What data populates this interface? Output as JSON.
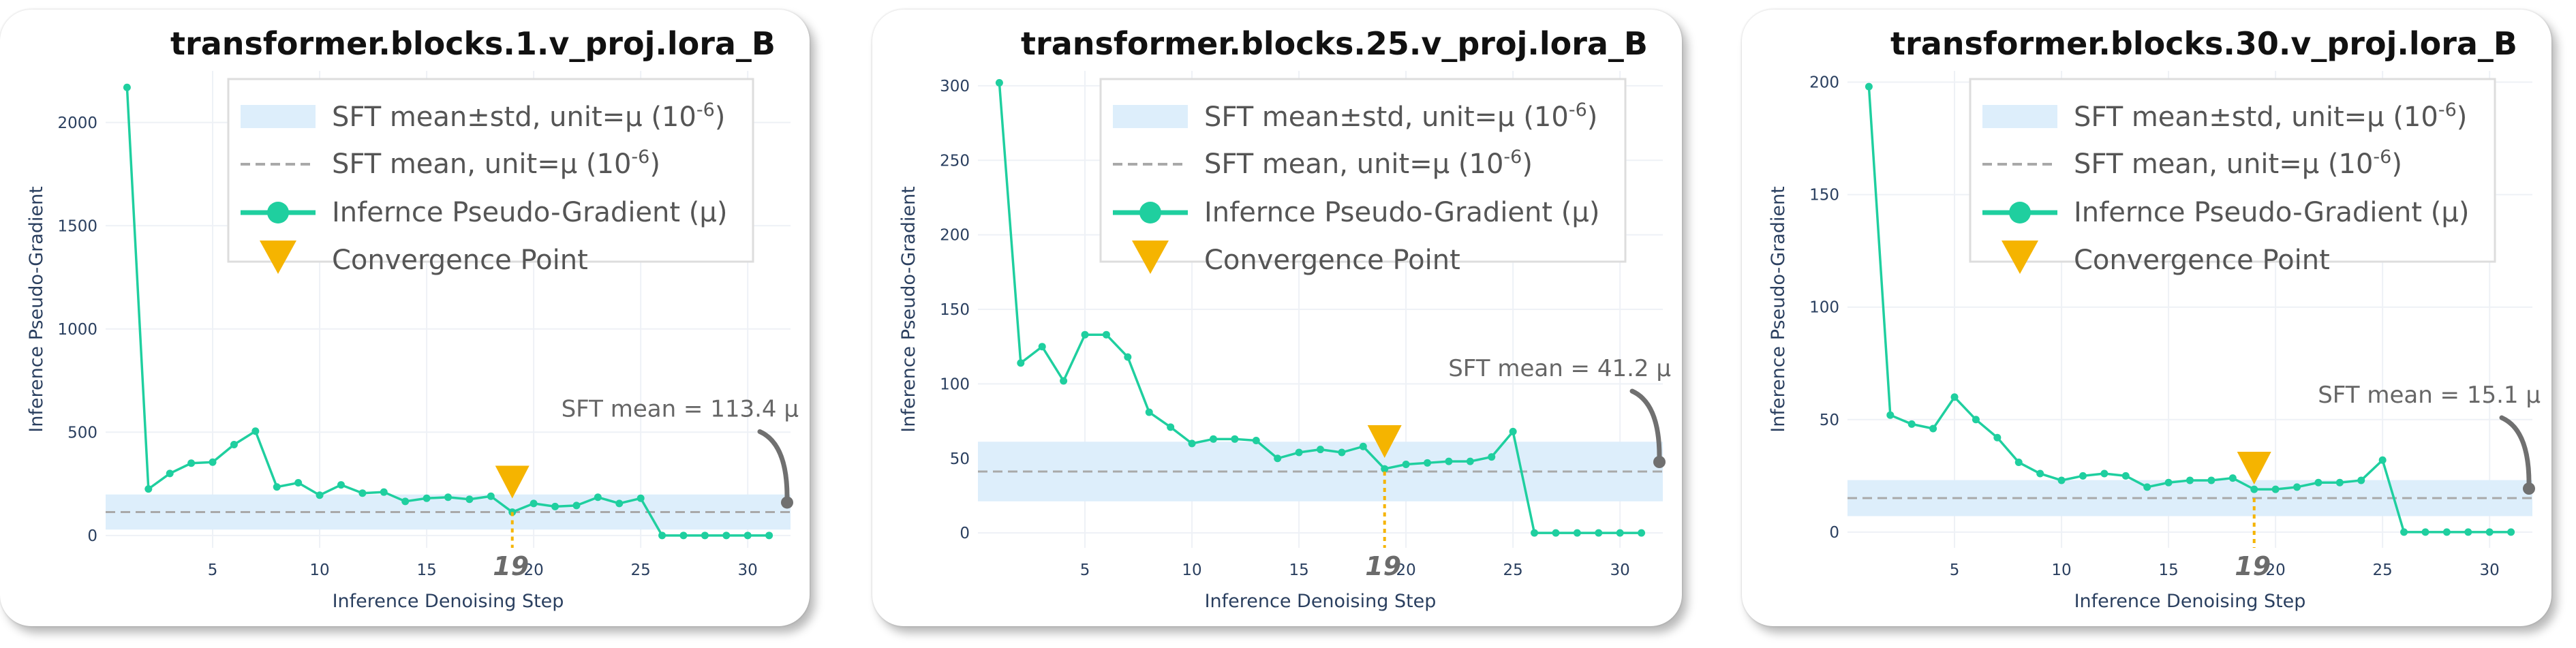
{
  "colors": {
    "band": "#ddeefb",
    "mean_line": "#a9a9a9",
    "series": "#1fcf9f",
    "marker": "#f5b400",
    "annotation": "#707070"
  },
  "legend": {
    "band_label": "SFT mean±std, unit=μ (10",
    "band_sup": "-6",
    "band_close": ")",
    "mean_label": "SFT mean, unit=μ (10",
    "mean_sup": "-6",
    "mean_close": ")",
    "series_label": "Infernce Pseudo-Gradient (μ)",
    "marker_label": "Convergence Point"
  },
  "chart_data": [
    {
      "type": "line",
      "title": "transformer.blocks.1.v_proj.lora_B",
      "xlabel": "Inference Denoising Step",
      "ylabel": "Inference Pseudo-Gradient",
      "xlim": [
        0,
        32
      ],
      "ylim": [
        -60,
        2250
      ],
      "xticks": [
        5,
        10,
        15,
        20,
        25,
        30
      ],
      "yticks": [
        0,
        500,
        1000,
        1500,
        2000
      ],
      "x": [
        1,
        2,
        3,
        4,
        5,
        6,
        7,
        8,
        9,
        10,
        11,
        12,
        13,
        14,
        15,
        16,
        17,
        18,
        19,
        20,
        21,
        22,
        23,
        24,
        25,
        26,
        27,
        28,
        29,
        30,
        31
      ],
      "y": [
        2170,
        225,
        300,
        350,
        355,
        440,
        505,
        235,
        255,
        195,
        245,
        205,
        210,
        165,
        180,
        185,
        175,
        190,
        113,
        155,
        140,
        145,
        185,
        155,
        180,
        0,
        0,
        0,
        0,
        0,
        0
      ],
      "sft_mean": 113.4,
      "sft_std": 85,
      "convergence_step": 19,
      "convergence_label": "19",
      "mean_annotation": "SFT mean = 113.4 μ"
    },
    {
      "type": "line",
      "title": "transformer.blocks.25.v_proj.lora_B",
      "xlabel": "Inference Denoising Step",
      "ylabel": "Inference Pseudo-Gradient",
      "xlim": [
        0,
        32
      ],
      "ylim": [
        -10,
        310
      ],
      "xticks": [
        5,
        10,
        15,
        20,
        25,
        30
      ],
      "yticks": [
        0,
        50,
        100,
        150,
        200,
        250,
        300
      ],
      "x": [
        1,
        2,
        3,
        4,
        5,
        6,
        7,
        8,
        9,
        10,
        11,
        12,
        13,
        14,
        15,
        16,
        17,
        18,
        19,
        20,
        21,
        22,
        23,
        24,
        25,
        26,
        27,
        28,
        29,
        30,
        31
      ],
      "y": [
        302,
        114,
        125,
        102,
        133,
        133,
        118,
        81,
        71,
        60,
        63,
        63,
        62,
        50,
        54,
        56,
        54,
        58,
        43,
        46,
        47,
        48,
        48,
        51,
        68,
        0,
        0,
        0,
        0,
        0,
        0
      ],
      "sft_mean": 41.2,
      "sft_std": 20,
      "convergence_step": 19,
      "convergence_label": "19",
      "mean_annotation": "SFT mean = 41.2 μ"
    },
    {
      "type": "line",
      "title": "transformer.blocks.30.v_proj.lora_B",
      "xlabel": "Inference Denoising Step",
      "ylabel": "Inference Pseudo-Gradient",
      "xlim": [
        0,
        32
      ],
      "ylim": [
        -7,
        205
      ],
      "xticks": [
        5,
        10,
        15,
        20,
        25,
        30
      ],
      "yticks": [
        0,
        50,
        100,
        150,
        200
      ],
      "x": [
        1,
        2,
        3,
        4,
        5,
        6,
        7,
        8,
        9,
        10,
        11,
        12,
        13,
        14,
        15,
        16,
        17,
        18,
        19,
        20,
        21,
        22,
        23,
        24,
        25,
        26,
        27,
        28,
        29,
        30,
        31
      ],
      "y": [
        198,
        52,
        48,
        46,
        60,
        50,
        42,
        31,
        26,
        23,
        25,
        26,
        25,
        20,
        22,
        23,
        23,
        24,
        19,
        19,
        20,
        22,
        22,
        23,
        32,
        0,
        0,
        0,
        0,
        0,
        0
      ],
      "sft_mean": 15.1,
      "sft_std": 8,
      "convergence_step": 19,
      "convergence_label": "19",
      "mean_annotation": "SFT mean = 15.1 μ"
    }
  ]
}
